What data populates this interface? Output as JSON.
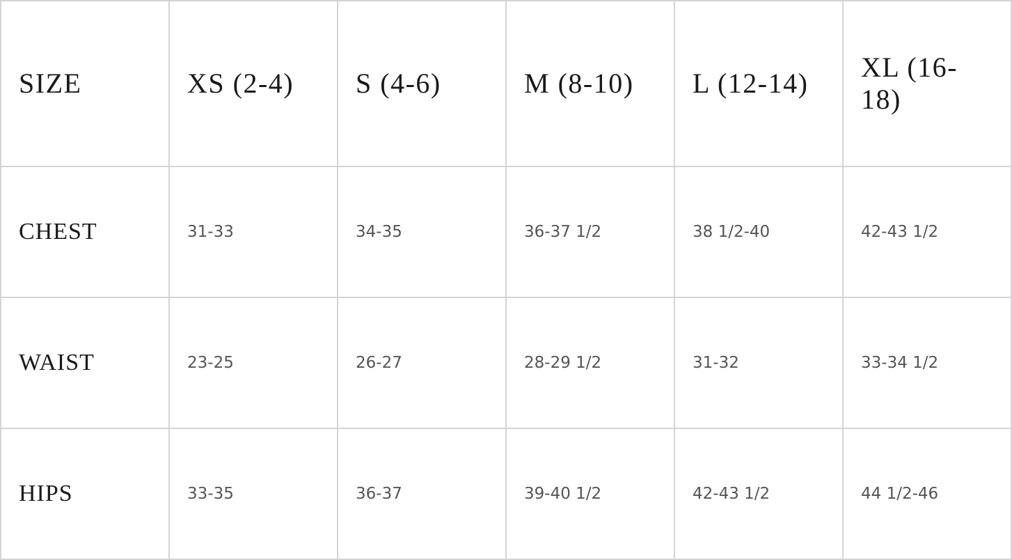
{
  "size_chart": {
    "headers": [
      "SIZE",
      "XS (2-4)",
      "S (4-6)",
      "M (8-10)",
      "L (12-14)",
      "XL (16-18)"
    ],
    "rows": [
      {
        "label": "CHEST",
        "values": [
          "31-33",
          "34-35",
          "36-37 1/2",
          "38 1/2-40",
          "42-43 1/2"
        ]
      },
      {
        "label": "WAIST",
        "values": [
          "23-25",
          "26-27",
          "28-29 1/2",
          "31-32",
          "33-34 1/2"
        ]
      },
      {
        "label": "HIPS",
        "values": [
          "33-35",
          "36-37",
          "39-40 1/2",
          "42-43 1/2",
          "44 1/2-46"
        ]
      }
    ]
  }
}
